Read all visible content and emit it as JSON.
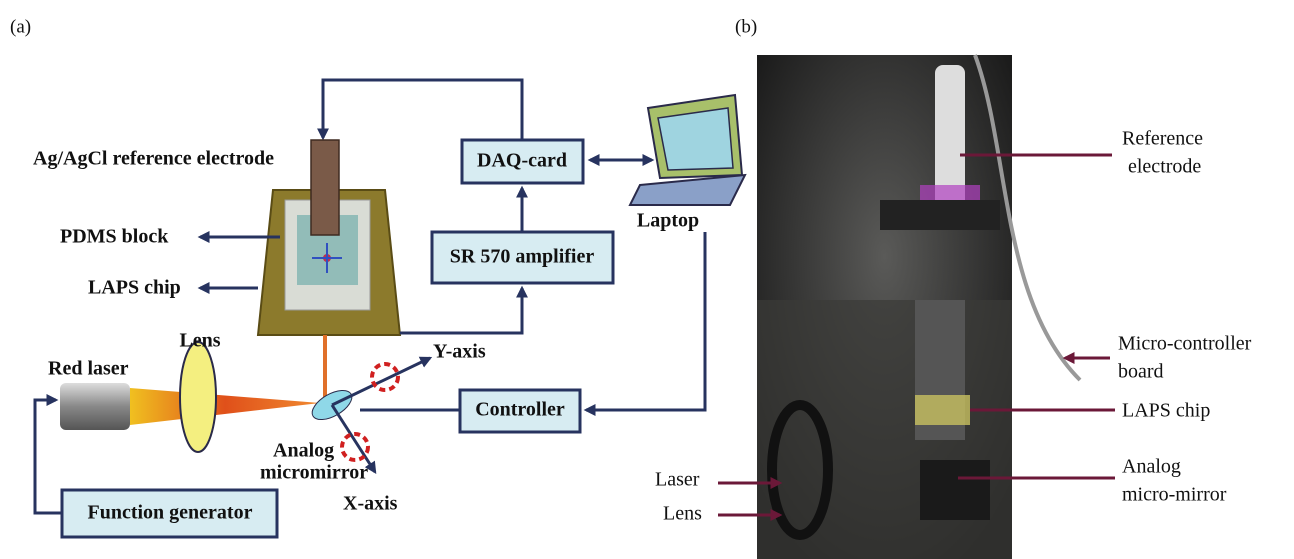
{
  "panel_a": {
    "tag": "(a)",
    "electrode": "Ag/AgCl reference electrode",
    "pdms": "PDMS block",
    "laps": "LAPS chip",
    "lens": "Lens",
    "laser": "Red laser",
    "mirror": [
      "Analog",
      "micromirror"
    ],
    "y_axis": "Y-axis",
    "x_axis": "X-axis",
    "function_generator": "Function generator",
    "daq": "DAQ-card",
    "amplifier": "SR 570 amplifier",
    "laptop": "Laptop",
    "controller": "Controller"
  },
  "panel_b": {
    "tag": "(b)",
    "reference": [
      "Reference",
      "electrode"
    ],
    "microcontroller": [
      "Micro-controller",
      "board"
    ],
    "laps": "LAPS chip",
    "mirror": [
      "Analog",
      "micro-mirror"
    ],
    "laser": "Laser",
    "lens": "Lens"
  }
}
